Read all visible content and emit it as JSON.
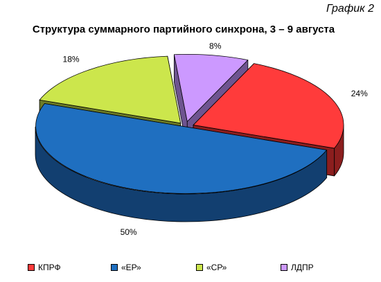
{
  "figure_label": "График 2",
  "chart_data": {
    "type": "pie",
    "title": "Структура суммарного партийного синхрона, 3 – 9 августа",
    "three_d": true,
    "exploded": true,
    "legend_position": "bottom",
    "categories": [
      "ЛДПР",
      "КПРФ",
      "«ЕР»",
      "«СР»"
    ],
    "values": [
      8,
      24,
      50,
      18
    ],
    "labels": [
      "8%",
      "24%",
      "50%",
      "18%"
    ],
    "colors": [
      "#CC99FF",
      "#FF3B3B",
      "#1F6FC0",
      "#CCE64C"
    ],
    "side_colors": [
      "#6E5490",
      "#8B1E1E",
      "#123F70",
      "#6B7A26"
    ],
    "legend": [
      {
        "label": "КПРФ",
        "color": "#FF3B3B"
      },
      {
        "label": "«ЕР»",
        "color": "#1F6FC0"
      },
      {
        "label": "«СР»",
        "color": "#CCE64C"
      },
      {
        "label": "ЛДПР",
        "color": "#CC99FF"
      }
    ]
  }
}
